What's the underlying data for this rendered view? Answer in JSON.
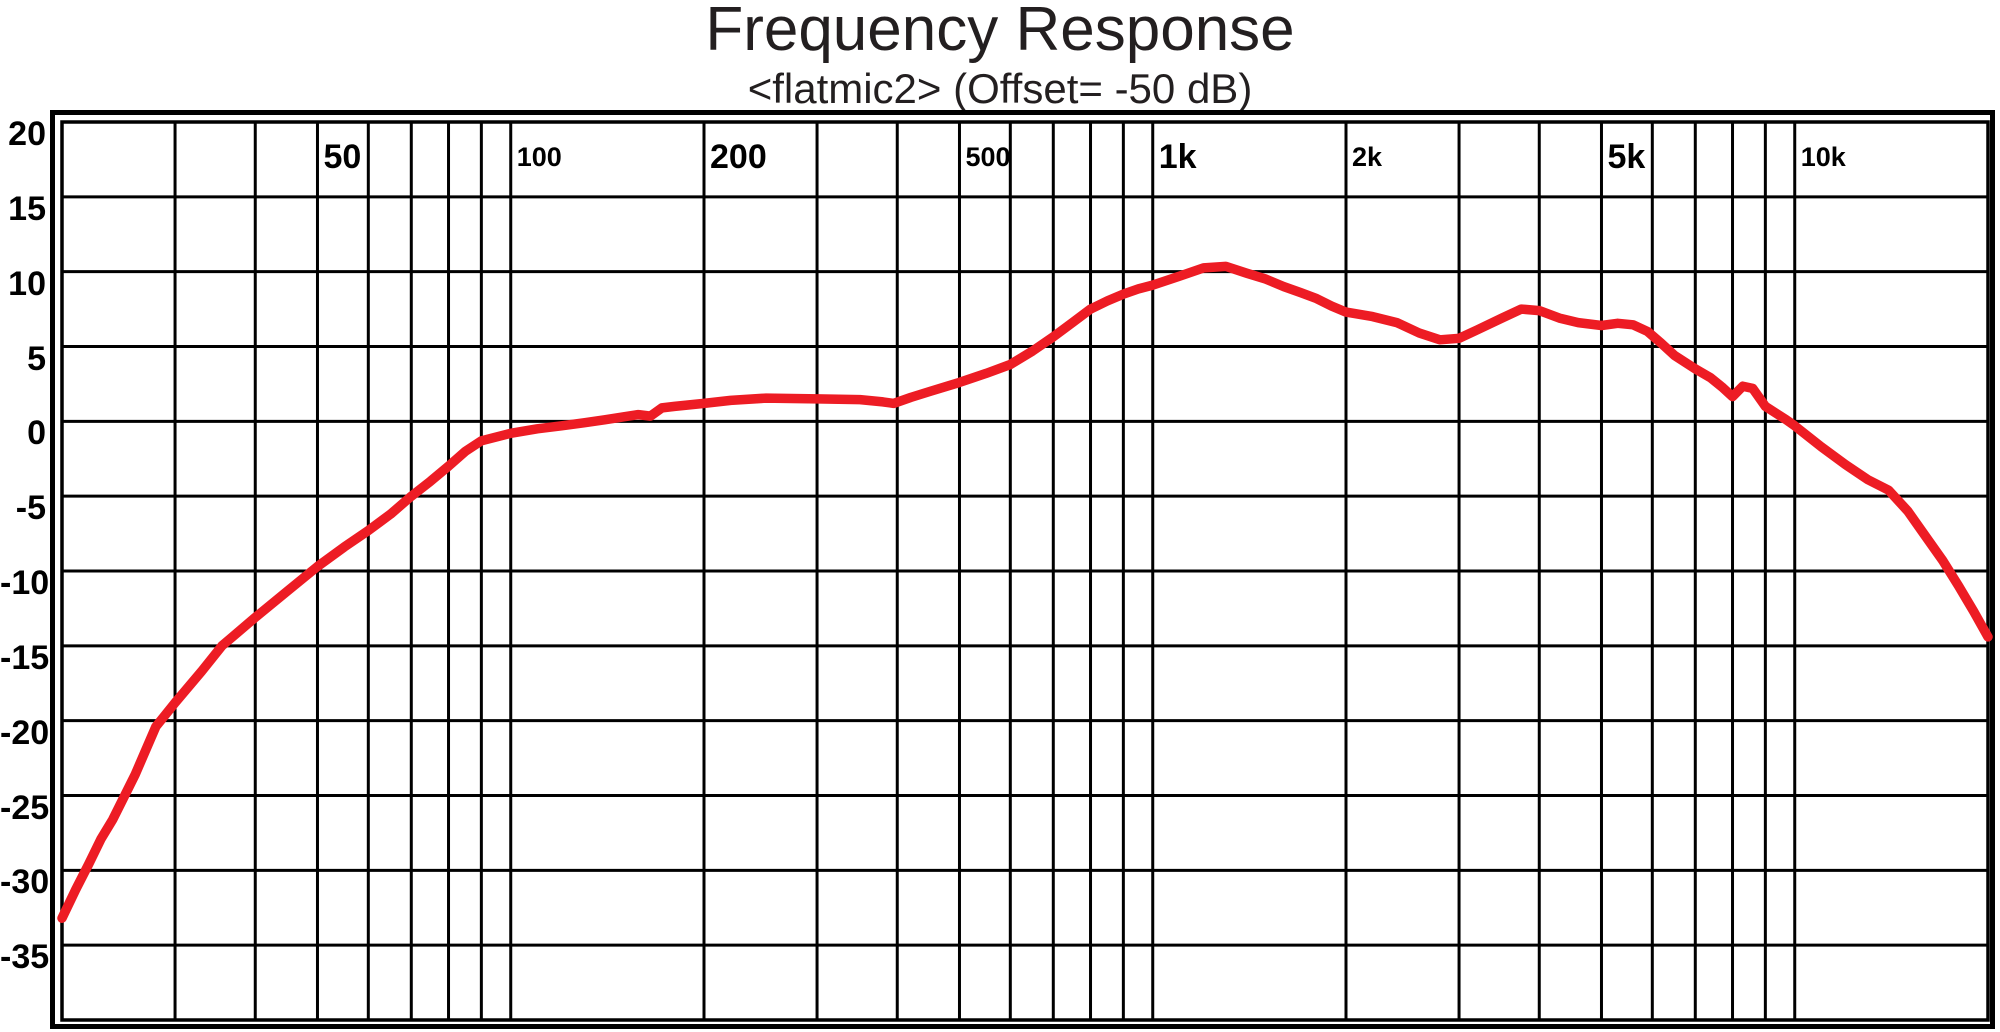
{
  "title": "Frequency Response",
  "subtitle": "<flatmic2> (Offset= -50 dB)",
  "colors": {
    "curve": "#ed1c24",
    "grid": "#000000",
    "frame": "#000000",
    "background": "#ffffff",
    "text": "#231f20"
  },
  "chart_data": {
    "type": "line",
    "title": "Frequency Response",
    "subtitle": "<flatmic2> (Offset= -50 dB)",
    "x_axis": {
      "scale": "log",
      "unit": "Hz",
      "min": 20,
      "max": 20000,
      "gridlines": [
        30,
        40,
        50,
        60,
        70,
        80,
        90,
        100,
        200,
        300,
        400,
        500,
        600,
        700,
        800,
        900,
        1000,
        2000,
        3000,
        4000,
        5000,
        6000,
        7000,
        8000,
        9000,
        10000
      ],
      "labels": [
        {
          "f": 50,
          "text": "50",
          "size": "major"
        },
        {
          "f": 100,
          "text": "100",
          "size": "minor"
        },
        {
          "f": 200,
          "text": "200",
          "size": "major"
        },
        {
          "f": 500,
          "text": "500",
          "size": "minor"
        },
        {
          "f": 1000,
          "text": "1k",
          "size": "major"
        },
        {
          "f": 2000,
          "text": "2k",
          "size": "minor"
        },
        {
          "f": 5000,
          "text": "5k",
          "size": "major"
        },
        {
          "f": 10000,
          "text": "10k",
          "size": "minor"
        }
      ]
    },
    "y_axis": {
      "unit": "dB",
      "min": -40,
      "max": 20,
      "step": 5,
      "gridlines": [
        15,
        10,
        5,
        0,
        -5,
        -10,
        -15,
        -20,
        -25,
        -30,
        -35
      ],
      "labels": [
        {
          "db": 20,
          "text": "20"
        },
        {
          "db": 15,
          "text": "15"
        },
        {
          "db": 10,
          "text": "10"
        },
        {
          "db": 5,
          "text": "5"
        },
        {
          "db": 0,
          "text": "0"
        },
        {
          "db": -5,
          "text": "-5"
        },
        {
          "db": -10,
          "text": "-10"
        },
        {
          "db": -15,
          "text": "-15"
        },
        {
          "db": -20,
          "text": "-20"
        },
        {
          "db": -25,
          "text": "-25"
        },
        {
          "db": -30,
          "text": "-30"
        },
        {
          "db": -35,
          "text": "-35"
        }
      ]
    },
    "grid": true,
    "legend": "none",
    "series": [
      {
        "name": "flatmic2",
        "color": "#ed1c24",
        "points": [
          [
            20,
            -33.2
          ],
          [
            21,
            -31.3
          ],
          [
            22,
            -29.6
          ],
          [
            23,
            -27.9
          ],
          [
            24,
            -26.6
          ],
          [
            26,
            -23.6
          ],
          [
            28,
            -20.4
          ],
          [
            30,
            -18.8
          ],
          [
            33,
            -16.7
          ],
          [
            35.5,
            -15.0
          ],
          [
            40,
            -13.1
          ],
          [
            45,
            -11.3
          ],
          [
            50,
            -9.7
          ],
          [
            55,
            -8.4
          ],
          [
            60,
            -7.3
          ],
          [
            65,
            -6.2
          ],
          [
            70,
            -5.0
          ],
          [
            75,
            -4.0
          ],
          [
            80,
            -3.0
          ],
          [
            85,
            -2.0
          ],
          [
            90,
            -1.3
          ],
          [
            100,
            -0.8
          ],
          [
            110,
            -0.5
          ],
          [
            120,
            -0.3
          ],
          [
            130,
            -0.1
          ],
          [
            140,
            0.1
          ],
          [
            150,
            0.3
          ],
          [
            158,
            0.45
          ],
          [
            165,
            0.35
          ],
          [
            172,
            0.9
          ],
          [
            180,
            1.0
          ],
          [
            200,
            1.2
          ],
          [
            220,
            1.4
          ],
          [
            250,
            1.55
          ],
          [
            300,
            1.5
          ],
          [
            350,
            1.45
          ],
          [
            380,
            1.3
          ],
          [
            395,
            1.2
          ],
          [
            420,
            1.6
          ],
          [
            450,
            2.0
          ],
          [
            500,
            2.6
          ],
          [
            550,
            3.2
          ],
          [
            600,
            3.8
          ],
          [
            650,
            4.7
          ],
          [
            700,
            5.65
          ],
          [
            750,
            6.6
          ],
          [
            800,
            7.5
          ],
          [
            850,
            8.05
          ],
          [
            900,
            8.5
          ],
          [
            950,
            8.85
          ],
          [
            1000,
            9.1
          ],
          [
            1100,
            9.7
          ],
          [
            1200,
            10.25
          ],
          [
            1300,
            10.35
          ],
          [
            1400,
            9.9
          ],
          [
            1500,
            9.5
          ],
          [
            1600,
            9.0
          ],
          [
            1700,
            8.6
          ],
          [
            1800,
            8.2
          ],
          [
            1900,
            7.7
          ],
          [
            2000,
            7.3
          ],
          [
            2200,
            7.0
          ],
          [
            2400,
            6.6
          ],
          [
            2600,
            5.9
          ],
          [
            2800,
            5.45
          ],
          [
            3000,
            5.55
          ],
          [
            3200,
            6.1
          ],
          [
            3500,
            6.9
          ],
          [
            3750,
            7.5
          ],
          [
            4000,
            7.4
          ],
          [
            4300,
            6.9
          ],
          [
            4600,
            6.6
          ],
          [
            5000,
            6.4
          ],
          [
            5300,
            6.55
          ],
          [
            5600,
            6.45
          ],
          [
            5900,
            6.0
          ],
          [
            6200,
            5.2
          ],
          [
            6500,
            4.4
          ],
          [
            7000,
            3.5
          ],
          [
            7400,
            2.9
          ],
          [
            7700,
            2.3
          ],
          [
            8000,
            1.65
          ],
          [
            8300,
            2.35
          ],
          [
            8600,
            2.2
          ],
          [
            9000,
            1.0
          ],
          [
            9700,
            0.1
          ],
          [
            10000,
            -0.3
          ],
          [
            11000,
            -1.7
          ],
          [
            12000,
            -2.9
          ],
          [
            13000,
            -3.9
          ],
          [
            14000,
            -4.6
          ],
          [
            15000,
            -6.0
          ],
          [
            16000,
            -7.7
          ],
          [
            17000,
            -9.3
          ],
          [
            18000,
            -11.0
          ],
          [
            19000,
            -12.7
          ],
          [
            20000,
            -14.4
          ]
        ]
      }
    ]
  }
}
